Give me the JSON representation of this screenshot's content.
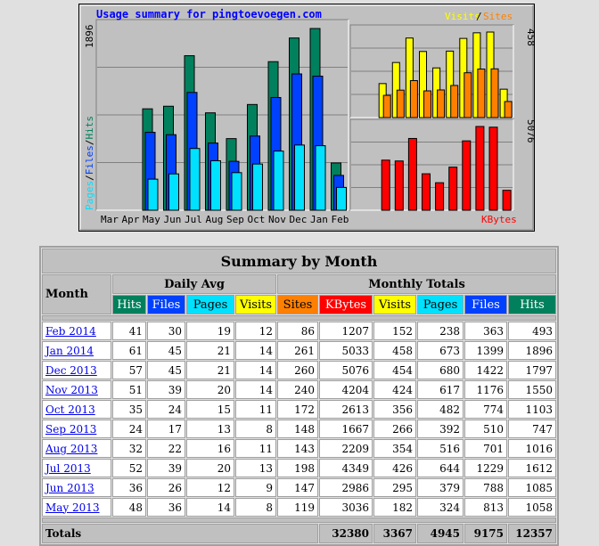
{
  "chart_title": "Usage summary for pingtoevoegen.com",
  "legend_top": {
    "visits": "Visits",
    "sep": "/",
    "sites": "Sites"
  },
  "legend_bottom": "KBytes",
  "left_axis_label": {
    "pages": "Pages",
    "files": "Files",
    "hits": "Hits",
    "sep": "/"
  },
  "colors": {
    "hits": "#00805c",
    "files": "#0040ff",
    "pages": "#00e0ff",
    "visits": "#ffff00",
    "sites": "#ff8000",
    "kbytes": "#ff0000"
  },
  "chart_data": [
    {
      "type": "bar",
      "categories": [
        "Mar",
        "Apr",
        "May",
        "Jun",
        "Jul",
        "Aug",
        "Sep",
        "Oct",
        "Nov",
        "Dec",
        "Jan",
        "Feb"
      ],
      "ymax": 1896,
      "ymax_label": "1896",
      "series": [
        {
          "name": "Hits",
          "values": [
            0,
            0,
            1058,
            1085,
            1612,
            1016,
            747,
            1103,
            1550,
            1797,
            1896,
            493
          ]
        },
        {
          "name": "Files",
          "values": [
            0,
            0,
            813,
            788,
            1229,
            701,
            510,
            774,
            1176,
            1422,
            1399,
            363
          ]
        },
        {
          "name": "Pages",
          "values": [
            0,
            0,
            324,
            379,
            644,
            516,
            392,
            482,
            617,
            680,
            673,
            238
          ]
        }
      ]
    },
    {
      "type": "bar",
      "ymax": 458,
      "ymax_label": "458",
      "series": [
        {
          "name": "Visits",
          "values": [
            0,
            0,
            182,
            295,
            426,
            354,
            266,
            356,
            424,
            454,
            458,
            152
          ]
        },
        {
          "name": "Sites",
          "values": [
            0,
            0,
            119,
            147,
            198,
            143,
            148,
            172,
            240,
            260,
            261,
            86
          ]
        }
      ]
    },
    {
      "type": "bar",
      "ymax": 5076,
      "ymax_label": "5076",
      "series": [
        {
          "name": "KBytes",
          "values": [
            0,
            0,
            3036,
            2986,
            4349,
            2209,
            1667,
            2613,
            4204,
            5076,
            5033,
            1207
          ]
        }
      ]
    }
  ],
  "table": {
    "title": "Summary by Month",
    "month_header": "Month",
    "daily_avg_header": "Daily Avg",
    "monthly_totals_header": "Monthly Totals",
    "daily_cols": [
      "Hits",
      "Files",
      "Pages",
      "Visits"
    ],
    "monthly_cols": [
      "Sites",
      "KBytes",
      "Visits",
      "Pages",
      "Files",
      "Hits"
    ],
    "rows": [
      {
        "month": "Feb 2014",
        "daily": [
          "41",
          "30",
          "19",
          "12"
        ],
        "monthly": [
          "86",
          "1207",
          "152",
          "238",
          "363",
          "493"
        ]
      },
      {
        "month": "Jan 2014",
        "daily": [
          "61",
          "45",
          "21",
          "14"
        ],
        "monthly": [
          "261",
          "5033",
          "458",
          "673",
          "1399",
          "1896"
        ]
      },
      {
        "month": "Dec 2013",
        "daily": [
          "57",
          "45",
          "21",
          "14"
        ],
        "monthly": [
          "260",
          "5076",
          "454",
          "680",
          "1422",
          "1797"
        ]
      },
      {
        "month": "Nov 2013",
        "daily": [
          "51",
          "39",
          "20",
          "14"
        ],
        "monthly": [
          "240",
          "4204",
          "424",
          "617",
          "1176",
          "1550"
        ]
      },
      {
        "month": "Oct 2013",
        "daily": [
          "35",
          "24",
          "15",
          "11"
        ],
        "monthly": [
          "172",
          "2613",
          "356",
          "482",
          "774",
          "1103"
        ]
      },
      {
        "month": "Sep 2013",
        "daily": [
          "24",
          "17",
          "13",
          "8"
        ],
        "monthly": [
          "148",
          "1667",
          "266",
          "392",
          "510",
          "747"
        ]
      },
      {
        "month": "Aug 2013",
        "daily": [
          "32",
          "22",
          "16",
          "11"
        ],
        "monthly": [
          "143",
          "2209",
          "354",
          "516",
          "701",
          "1016"
        ]
      },
      {
        "month": "Jul 2013",
        "daily": [
          "52",
          "39",
          "20",
          "13"
        ],
        "monthly": [
          "198",
          "4349",
          "426",
          "644",
          "1229",
          "1612"
        ]
      },
      {
        "month": "Jun 2013",
        "daily": [
          "36",
          "26",
          "12",
          "9"
        ],
        "monthly": [
          "147",
          "2986",
          "295",
          "379",
          "788",
          "1085"
        ]
      },
      {
        "month": "May 2013",
        "daily": [
          "48",
          "36",
          "14",
          "8"
        ],
        "monthly": [
          "119",
          "3036",
          "182",
          "324",
          "813",
          "1058"
        ]
      }
    ],
    "totals_label": "Totals",
    "totals": [
      "32380",
      "3367",
      "4945",
      "9175",
      "12357"
    ]
  }
}
